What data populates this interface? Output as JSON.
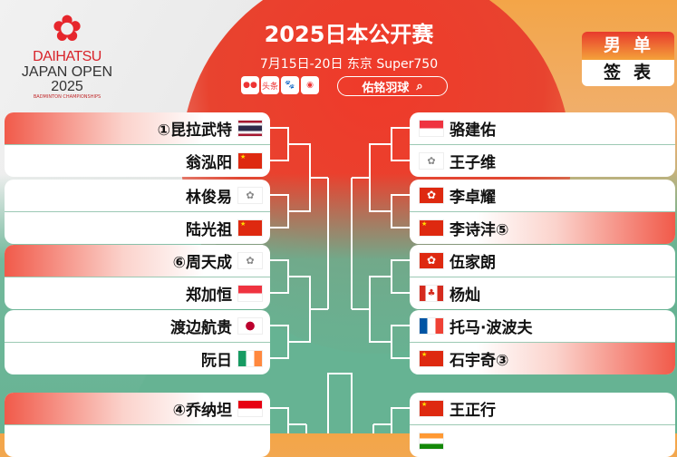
{
  "event": {
    "title": "2025日本公开赛",
    "subtitle": "7月15日-20日 东京 Super750",
    "logo_text": [
      "DAIHATSU",
      "JAPAN OPEN 2025",
      "BADMINTON CHAMPIONSHIPS"
    ]
  },
  "social": {
    "icons": [
      "toutiao-icon",
      "headline-icon",
      "baidu-icon",
      "weibo-icon"
    ],
    "labels": [
      "",
      "头条",
      "",
      ""
    ],
    "search_label": "佑铭羽球"
  },
  "badge": {
    "top": "男单",
    "bottom": "签表"
  },
  "colors": {
    "accent": "#e8432f",
    "orange": "#f3a548",
    "green": "#66b393"
  },
  "left": [
    {
      "players": [
        {
          "name": "①昆拉武特",
          "flag": "th",
          "seed": true
        },
        {
          "name": "翁泓阳",
          "flag": "cn"
        }
      ]
    },
    {
      "players": [
        {
          "name": "林俊易",
          "flag": "tpe"
        },
        {
          "name": "陆光祖",
          "flag": "cn"
        }
      ]
    },
    {
      "players": [
        {
          "name": "⑥周天成",
          "flag": "tpe",
          "seed": true
        },
        {
          "name": "郑加恒",
          "flag": "sg"
        }
      ]
    },
    {
      "players": [
        {
          "name": "渡边航贵",
          "flag": "jp"
        },
        {
          "name": "阮日",
          "flag": "ie"
        }
      ]
    },
    {
      "players": [
        {
          "name": "④乔纳坦",
          "flag": "id",
          "seed": true
        },
        {
          "name": "",
          "flag": ""
        }
      ]
    }
  ],
  "right": [
    {
      "players": [
        {
          "name": "骆建佑",
          "flag": "sg"
        },
        {
          "name": "王子维",
          "flag": "tpe"
        }
      ]
    },
    {
      "players": [
        {
          "name": "李卓耀",
          "flag": "hk"
        },
        {
          "name": "李诗沣⑤",
          "flag": "cn",
          "seed": true
        }
      ]
    },
    {
      "players": [
        {
          "name": "伍家朗",
          "flag": "hk"
        },
        {
          "name": "杨灿",
          "flag": "ca"
        }
      ]
    },
    {
      "players": [
        {
          "name": "托马·波波夫",
          "flag": "fr"
        },
        {
          "name": "石宇奇③",
          "flag": "cn",
          "seed": true
        }
      ]
    },
    {
      "players": [
        {
          "name": "王正行",
          "flag": "cn"
        },
        {
          "name": "",
          "flag": "in"
        }
      ]
    }
  ]
}
